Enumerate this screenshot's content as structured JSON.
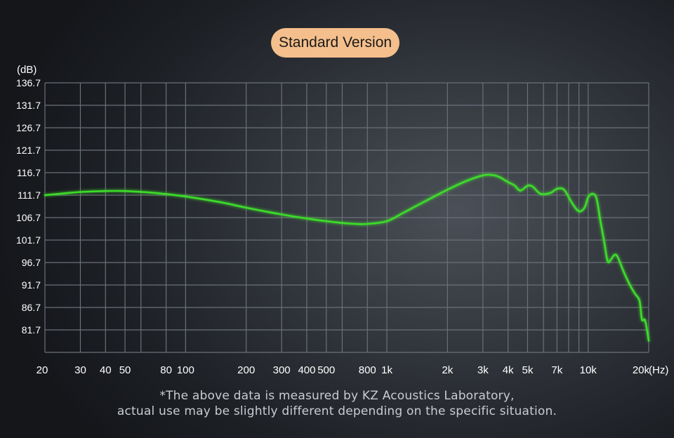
{
  "chart_data": {
    "type": "line",
    "title": "Standard Version",
    "ylabel": "(dB)",
    "xlabel": "(Hz)",
    "xscale": "log",
    "ylim": [
      76.7,
      136.7
    ],
    "xlim": [
      20,
      20000
    ],
    "grid": true,
    "legend": "none",
    "line_color": "#3ddc2a",
    "y_ticks": [
      136.7,
      131.7,
      126.7,
      121.7,
      116.7,
      111.7,
      106.7,
      101.7,
      96.7,
      91.7,
      86.7,
      81.7
    ],
    "y_tick_labels": [
      "136.7",
      "131.7",
      "126.7",
      "121.7",
      "116.7",
      "111.7",
      "106.7",
      "101.7",
      "96.7",
      "91.7",
      "86.7",
      "81.7"
    ],
    "x_ticks": [
      20,
      30,
      40,
      50,
      80,
      100,
      200,
      300,
      400,
      500,
      800,
      1000,
      2000,
      3000,
      4000,
      5000,
      7000,
      10000,
      20000
    ],
    "x_tick_labels": [
      "20",
      "30",
      "40",
      "50",
      "80",
      "100",
      "200",
      "300",
      "400",
      "500",
      "800",
      "1k",
      "2k",
      "3k",
      "4k",
      "5k",
      "7k",
      "10k",
      "20k"
    ],
    "x_grid": [
      20,
      30,
      40,
      50,
      60,
      80,
      100,
      200,
      300,
      400,
      500,
      600,
      800,
      1000,
      2000,
      3000,
      4000,
      5000,
      6000,
      7000,
      8000,
      9000,
      10000,
      20000
    ],
    "series": [
      {
        "x": [
          20,
          25,
          30,
          40,
          50,
          70,
          100,
          150,
          200,
          300,
          400,
          500,
          600,
          700,
          800,
          1000,
          1200,
          1500,
          2000,
          2500,
          3000,
          3300,
          3600,
          4000,
          4300,
          4600,
          5000,
          5300,
          5800,
          6500,
          7000,
          7600,
          8300,
          9000,
          9600,
          10000,
          10500,
          11000,
          11500,
          12000,
          12500,
          13000,
          13500,
          14000,
          15000,
          16000,
          17000,
          18000,
          18500,
          19200,
          20000
        ],
        "y": [
          111.7,
          112.1,
          112.4,
          112.6,
          112.6,
          112.2,
          111.4,
          110.1,
          108.9,
          107.4,
          106.5,
          105.9,
          105.5,
          105.3,
          105.3,
          105.9,
          107.7,
          110.0,
          112.9,
          114.9,
          116.1,
          116.2,
          115.8,
          114.6,
          113.9,
          112.7,
          113.8,
          113.6,
          112.0,
          112.2,
          113.1,
          112.9,
          110.0,
          108.1,
          108.9,
          111.2,
          112.0,
          111.0,
          106.0,
          101.5,
          97.0,
          97.4,
          98.4,
          98.0,
          94.7,
          92.0,
          89.9,
          88.2,
          84.0,
          83.8,
          79.3
        ]
      }
    ]
  },
  "footnote": {
    "line1": "*The above data is measured by KZ Acoustics Laboratory,",
    "line2": "actual use may be slightly different depending on the specific situation."
  }
}
